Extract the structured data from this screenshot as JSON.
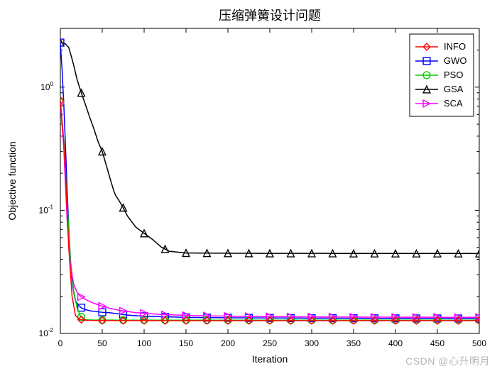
{
  "title": "压缩弹簧设计问题",
  "title_fontsize": 18,
  "xlabel": "Iteration",
  "ylabel": "Objective function",
  "label_fontsize": 14,
  "tick_fontsize": 12,
  "background_color": "#ffffff",
  "axes_line_color": "#000000",
  "grid": false,
  "xlim": [
    0,
    500
  ],
  "xticks": [
    0,
    50,
    100,
    150,
    200,
    250,
    300,
    350,
    400,
    450,
    500
  ],
  "ylim": [
    0.01,
    3.0
  ],
  "yscale": "log",
  "yticks_major": [
    0.01,
    0.1,
    1
  ],
  "ytick_labels": [
    "10^{-2}",
    "10^{-1}",
    "10^{0}"
  ],
  "line_width": 1.5,
  "marker_size": 7,
  "marker_stride": 25,
  "legend": {
    "position": "top-right",
    "border_color": "#000000",
    "background": "#ffffff",
    "fontsize": 13,
    "items": [
      {
        "label": "INFO",
        "color": "#ff0000",
        "marker": "diamond"
      },
      {
        "label": "GWO",
        "color": "#0000ff",
        "marker": "square"
      },
      {
        "label": "PSO",
        "color": "#00cc00",
        "marker": "circle"
      },
      {
        "label": "GSA",
        "color": "#000000",
        "marker": "triangle"
      },
      {
        "label": "SCA",
        "color": "#ff00ff",
        "marker": "rtriangle"
      }
    ]
  },
  "series": {
    "INFO": {
      "color": "#ff0000",
      "marker": "diamond",
      "x": [
        0,
        5,
        10,
        14,
        18,
        22,
        26,
        30,
        40,
        50,
        75,
        100,
        150,
        200,
        250,
        300,
        350,
        400,
        450,
        500
      ],
      "y": [
        0.78,
        0.3,
        0.05,
        0.02,
        0.014,
        0.0131,
        0.0129,
        0.0128,
        0.01275,
        0.01273,
        0.01272,
        0.01271,
        0.0127,
        0.01269,
        0.01269,
        0.01269,
        0.01269,
        0.01269,
        0.01269,
        0.01269
      ]
    },
    "GWO": {
      "color": "#0000ff",
      "marker": "square",
      "x": [
        0,
        3,
        6,
        9,
        12,
        15,
        18,
        22,
        26,
        30,
        35,
        40,
        50,
        60,
        80,
        100,
        150,
        200,
        300,
        400,
        500
      ],
      "y": [
        2.3,
        1.1,
        0.35,
        0.1,
        0.04,
        0.023,
        0.0185,
        0.0168,
        0.016,
        0.0156,
        0.0153,
        0.0151,
        0.01485,
        0.0147,
        0.0141,
        0.0138,
        0.0135,
        0.0134,
        0.0133,
        0.01325,
        0.01322
      ]
    },
    "PSO": {
      "color": "#00cc00",
      "marker": "circle",
      "x": [
        0,
        4,
        8,
        12,
        16,
        20,
        24,
        28,
        32,
        40,
        50,
        75,
        100,
        150,
        200,
        300,
        400,
        500
      ],
      "y": [
        0.75,
        0.38,
        0.12,
        0.04,
        0.022,
        0.016,
        0.0138,
        0.01305,
        0.0129,
        0.01285,
        0.01284,
        0.01283,
        0.01283,
        0.01283,
        0.01283,
        0.01283,
        0.01283,
        0.01283
      ]
    },
    "GSA": {
      "color": "#000000",
      "marker": "triangle",
      "x": [
        0,
        5,
        10,
        15,
        20,
        25,
        30,
        35,
        40,
        45,
        50,
        55,
        60,
        65,
        70,
        75,
        80,
        90,
        100,
        110,
        120,
        130,
        150,
        200,
        250,
        300,
        350,
        400,
        450,
        500
      ],
      "y": [
        2.3,
        2.28,
        2.1,
        1.6,
        1.15,
        0.9,
        0.72,
        0.57,
        0.46,
        0.36,
        0.3,
        0.23,
        0.175,
        0.135,
        0.12,
        0.105,
        0.09,
        0.073,
        0.065,
        0.058,
        0.0505,
        0.0465,
        0.045,
        0.0448,
        0.0447,
        0.0447,
        0.0446,
        0.0446,
        0.0446,
        0.0446
      ]
    },
    "SCA": {
      "color": "#ff00ff",
      "marker": "rtriangle",
      "x": [
        0,
        4,
        8,
        12,
        16,
        20,
        24,
        28,
        34,
        40,
        48,
        56,
        70,
        90,
        120,
        160,
        220,
        300,
        400,
        500
      ],
      "y": [
        0.73,
        0.33,
        0.085,
        0.036,
        0.025,
        0.0216,
        0.02,
        0.0192,
        0.0183,
        0.0176,
        0.0168,
        0.0162,
        0.0154,
        0.01475,
        0.01425,
        0.01395,
        0.01374,
        0.01362,
        0.01355,
        0.01352
      ]
    }
  },
  "watermark": "CSDN @心升明月"
}
